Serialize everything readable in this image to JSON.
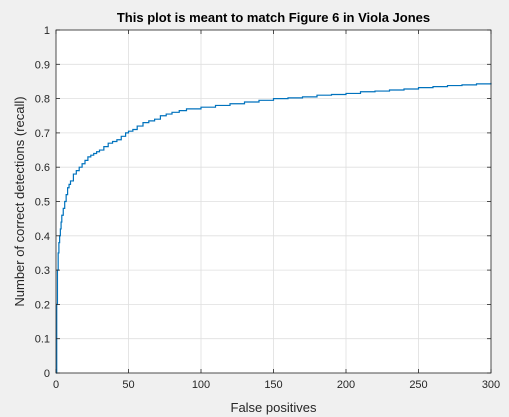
{
  "chart_data": {
    "type": "line",
    "title": "This plot is meant to match Figure 6 in Viola Jones",
    "xlabel": "False positives",
    "ylabel": "Number of correct detections (recall)",
    "xlim": [
      0,
      300
    ],
    "ylim": [
      0,
      1
    ],
    "xticks": [
      0,
      50,
      100,
      150,
      200,
      250,
      300
    ],
    "yticks": [
      0,
      0.1,
      0.2,
      0.3,
      0.4,
      0.5,
      0.6,
      0.7,
      0.8,
      0.9,
      1
    ],
    "grid": true,
    "colors": {
      "line": "#0072bd",
      "grid": "#dfdfdf",
      "axes": "#262626",
      "figure_bg": "#f0f0f0",
      "axes_bg": "#ffffff"
    },
    "series": [
      {
        "step": true,
        "x": [
          0,
          0.5,
          1,
          1.5,
          2,
          2.5,
          3,
          3.5,
          4,
          5,
          6,
          7,
          8,
          9,
          10,
          12,
          14,
          16,
          18,
          20,
          22,
          24,
          26,
          28,
          30,
          33,
          36,
          39,
          42,
          45,
          48,
          50,
          53,
          56,
          60,
          64,
          68,
          72,
          76,
          80,
          85,
          90,
          100,
          110,
          120,
          130,
          140,
          150,
          160,
          170,
          180,
          190,
          200,
          210,
          220,
          230,
          240,
          250,
          260,
          270,
          280,
          290,
          300
        ],
        "y": [
          0,
          0.2,
          0.3,
          0.35,
          0.38,
          0.4,
          0.42,
          0.44,
          0.46,
          0.48,
          0.5,
          0.52,
          0.54,
          0.55,
          0.56,
          0.58,
          0.59,
          0.6,
          0.61,
          0.62,
          0.63,
          0.635,
          0.64,
          0.645,
          0.65,
          0.66,
          0.67,
          0.675,
          0.68,
          0.69,
          0.7,
          0.705,
          0.71,
          0.72,
          0.73,
          0.735,
          0.74,
          0.75,
          0.755,
          0.76,
          0.765,
          0.77,
          0.775,
          0.78,
          0.785,
          0.79,
          0.795,
          0.8,
          0.802,
          0.805,
          0.81,
          0.812,
          0.815,
          0.82,
          0.822,
          0.825,
          0.828,
          0.832,
          0.835,
          0.838,
          0.84,
          0.843,
          0.846
        ]
      }
    ]
  }
}
